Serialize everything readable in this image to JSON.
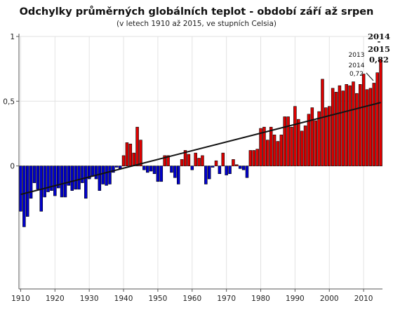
{
  "chart_data": {
    "type": "bar",
    "title": "Odchylky průměrných globálních teplot - období září až srpen",
    "subtitle": "(v letech 1910 až 2015, ve stupních Celsia)",
    "xlabel": "",
    "ylabel": "",
    "ylim": [
      -0.95,
      1.0
    ],
    "xlim": [
      1909.5,
      2015.5
    ],
    "grid": true,
    "legend": "none",
    "y_ticks": [
      {
        "value": 1,
        "label": "1"
      },
      {
        "value": 0.5,
        "label": "0,5"
      },
      {
        "value": 0,
        "label": "0"
      }
    ],
    "x_ticks": [
      {
        "value": 1910,
        "label": "1910"
      },
      {
        "value": 1920,
        "label": "1920"
      },
      {
        "value": 1930,
        "label": "1930"
      },
      {
        "value": 1940,
        "label": "1940"
      },
      {
        "value": 1950,
        "label": "1950"
      },
      {
        "value": 1960,
        "label": "1960"
      },
      {
        "value": 1970,
        "label": "1970"
      },
      {
        "value": 1980,
        "label": "1980"
      },
      {
        "value": 1990,
        "label": "1990"
      },
      {
        "value": 2000,
        "label": "2000"
      },
      {
        "value": 2010,
        "label": "2010"
      }
    ],
    "x": [
      1910,
      1911,
      1912,
      1913,
      1914,
      1915,
      1916,
      1917,
      1918,
      1919,
      1920,
      1921,
      1922,
      1923,
      1924,
      1925,
      1926,
      1927,
      1928,
      1929,
      1930,
      1931,
      1932,
      1933,
      1934,
      1935,
      1936,
      1937,
      1938,
      1939,
      1940,
      1941,
      1942,
      1943,
      1944,
      1945,
      1946,
      1947,
      1948,
      1949,
      1950,
      1951,
      1952,
      1953,
      1954,
      1955,
      1956,
      1957,
      1958,
      1959,
      1960,
      1961,
      1962,
      1963,
      1964,
      1965,
      1966,
      1967,
      1968,
      1969,
      1970,
      1971,
      1972,
      1973,
      1974,
      1975,
      1976,
      1977,
      1978,
      1979,
      1980,
      1981,
      1982,
      1983,
      1984,
      1985,
      1986,
      1987,
      1988,
      1989,
      1990,
      1991,
      1992,
      1993,
      1994,
      1995,
      1996,
      1997,
      1998,
      1999,
      2000,
      2001,
      2002,
      2003,
      2004,
      2005,
      2006,
      2007,
      2008,
      2009,
      2010,
      2011,
      2012,
      2013,
      2014,
      2015
    ],
    "values": [
      -0.35,
      -0.47,
      -0.39,
      -0.25,
      -0.13,
      -0.18,
      -0.35,
      -0.24,
      -0.2,
      -0.19,
      -0.23,
      -0.17,
      -0.24,
      -0.24,
      -0.15,
      -0.19,
      -0.18,
      -0.18,
      -0.13,
      -0.25,
      -0.1,
      -0.08,
      -0.1,
      -0.19,
      -0.14,
      -0.15,
      -0.14,
      -0.05,
      -0.01,
      -0.02,
      0.08,
      0.18,
      0.17,
      0.1,
      0.3,
      0.2,
      -0.03,
      -0.05,
      -0.04,
      -0.06,
      -0.12,
      -0.12,
      0.08,
      0.08,
      -0.05,
      -0.09,
      -0.14,
      0.05,
      0.12,
      0.09,
      -0.03,
      0.1,
      0.06,
      0.08,
      -0.14,
      -0.1,
      -0.01,
      0.04,
      -0.06,
      0.1,
      -0.07,
      -0.06,
      0.05,
      0.01,
      -0.02,
      -0.03,
      -0.09,
      0.12,
      0.12,
      0.13,
      0.29,
      0.3,
      0.2,
      0.3,
      0.24,
      0.19,
      0.24,
      0.38,
      0.38,
      0.3,
      0.46,
      0.36,
      0.27,
      0.31,
      0.4,
      0.45,
      0.35,
      0.42,
      0.67,
      0.45,
      0.46,
      0.6,
      0.57,
      0.62,
      0.58,
      0.63,
      0.62,
      0.65,
      0.56,
      0.63,
      0.71,
      0.59,
      0.6,
      0.64,
      0.72,
      0.82
    ],
    "trend": {
      "x": [
        1910,
        2015
      ],
      "y": [
        -0.22,
        0.49
      ]
    },
    "positive_color": "#dd0000",
    "negative_color": "#0000cc",
    "annotations": {
      "bold_year": "2014",
      "bold_dash": "-",
      "bold_year2": "2015",
      "bold_value": "0,82",
      "small_year_a": "2013",
      "small_year_b": "2014",
      "small_value": "0,72"
    }
  }
}
